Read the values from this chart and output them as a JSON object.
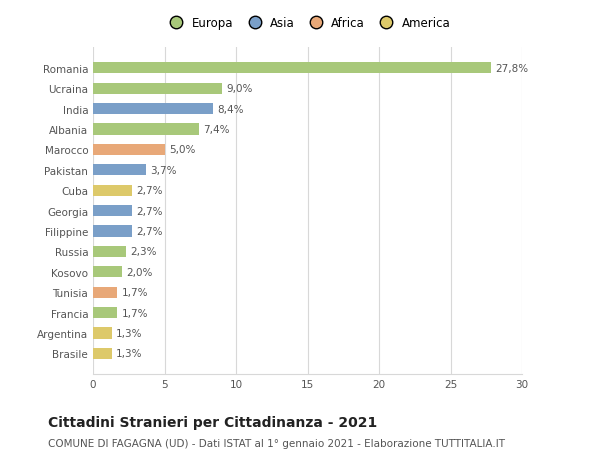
{
  "categories": [
    "Brasile",
    "Argentina",
    "Francia",
    "Tunisia",
    "Kosovo",
    "Russia",
    "Filippine",
    "Georgia",
    "Cuba",
    "Pakistan",
    "Marocco",
    "Albania",
    "India",
    "Ucraina",
    "Romania"
  ],
  "values": [
    1.3,
    1.3,
    1.7,
    1.7,
    2.0,
    2.3,
    2.7,
    2.7,
    2.7,
    3.7,
    5.0,
    7.4,
    8.4,
    9.0,
    27.8
  ],
  "labels": [
    "1,3%",
    "1,3%",
    "1,7%",
    "1,7%",
    "2,0%",
    "2,3%",
    "2,7%",
    "2,7%",
    "2,7%",
    "3,7%",
    "5,0%",
    "7,4%",
    "8,4%",
    "9,0%",
    "27,8%"
  ],
  "colors": [
    "#ddc96a",
    "#ddc96a",
    "#a8c87a",
    "#e8a878",
    "#a8c87a",
    "#a8c87a",
    "#7a9fc8",
    "#7a9fc8",
    "#ddc96a",
    "#7a9fc8",
    "#e8a878",
    "#a8c87a",
    "#7a9fc8",
    "#a8c87a",
    "#a8c87a"
  ],
  "legend_labels": [
    "Europa",
    "Asia",
    "Africa",
    "America"
  ],
  "legend_colors": [
    "#a8c87a",
    "#7a9fc8",
    "#e8a878",
    "#ddc96a"
  ],
  "xlim": [
    0,
    30
  ],
  "xticks": [
    0,
    5,
    10,
    15,
    20,
    25,
    30
  ],
  "title": "Cittadini Stranieri per Cittadinanza - 2021",
  "subtitle": "COMUNE DI FAGAGNA (UD) - Dati ISTAT al 1° gennaio 2021 - Elaborazione TUTTITALIA.IT",
  "bg_color": "#ffffff",
  "grid_color": "#d8d8d8",
  "bar_height": 0.55,
  "title_fontsize": 10,
  "subtitle_fontsize": 7.5,
  "label_fontsize": 7.5,
  "tick_fontsize": 7.5,
  "legend_fontsize": 8.5
}
